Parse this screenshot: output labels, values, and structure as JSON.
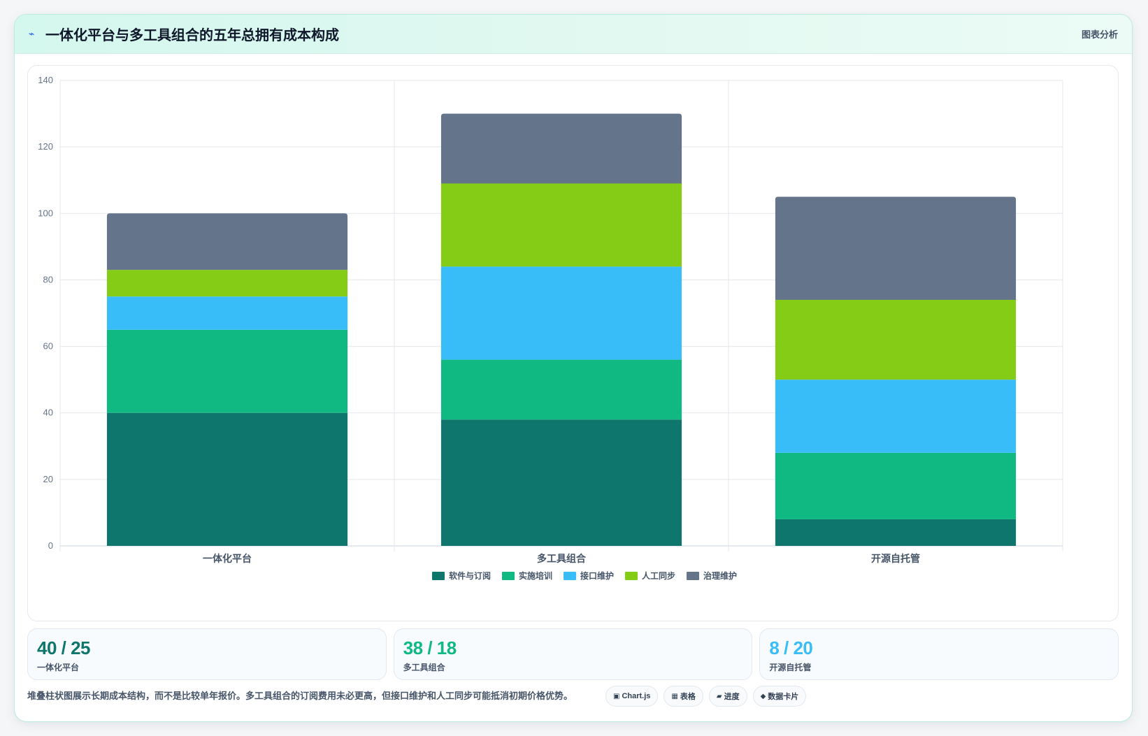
{
  "header": {
    "icon": "lightning-icon",
    "title": "一体化平台与多工具组合的五年总拥有成本构成",
    "tag": "图表分析"
  },
  "chart_data": {
    "type": "bar",
    "stacked": true,
    "categories": [
      "一体化平台",
      "多工具组合",
      "开源自托管"
    ],
    "series": [
      {
        "name": "软件与订阅",
        "color": "#0f766e",
        "values": [
          40,
          38,
          8
        ]
      },
      {
        "name": "实施培训",
        "color": "#10b981",
        "values": [
          25,
          18,
          20
        ]
      },
      {
        "name": "接口维护",
        "color": "#38bdf8",
        "values": [
          10,
          28,
          22
        ]
      },
      {
        "name": "人工同步",
        "color": "#84cc16",
        "values": [
          8,
          25,
          24
        ]
      },
      {
        "name": "治理维护",
        "color": "#64748b",
        "values": [
          17,
          21,
          31
        ]
      }
    ],
    "ylim": [
      0,
      140
    ],
    "yticks": [
      0,
      20,
      40,
      60,
      80,
      100,
      120,
      140
    ],
    "xlabel": "",
    "ylabel": "",
    "grid": true,
    "legend": "bottom"
  },
  "kpis": [
    {
      "value": "40 / 25",
      "label": "一体化平台",
      "color": "#0f766e"
    },
    {
      "value": "38 / 18",
      "label": "多工具组合",
      "color": "#10b981"
    },
    {
      "value": "8 / 20",
      "label": "开源自托管",
      "color": "#38bdf8"
    }
  ],
  "footer": {
    "note": "堆叠柱状图展示长期成本结构，而不是比较单年报价。多工具组合的订阅费用未必更高，但接口维护和人工同步可能抵消初期价格优势。",
    "chips": [
      {
        "icon": "▣",
        "icon_name": "chart-icon",
        "label": "Chart.js"
      },
      {
        "icon": "▦",
        "icon_name": "table-icon",
        "label": "表格"
      },
      {
        "icon": "▰",
        "icon_name": "progress-icon",
        "label": "进度"
      },
      {
        "icon": "◆",
        "icon_name": "data-card-icon",
        "label": "数据卡片"
      }
    ]
  }
}
